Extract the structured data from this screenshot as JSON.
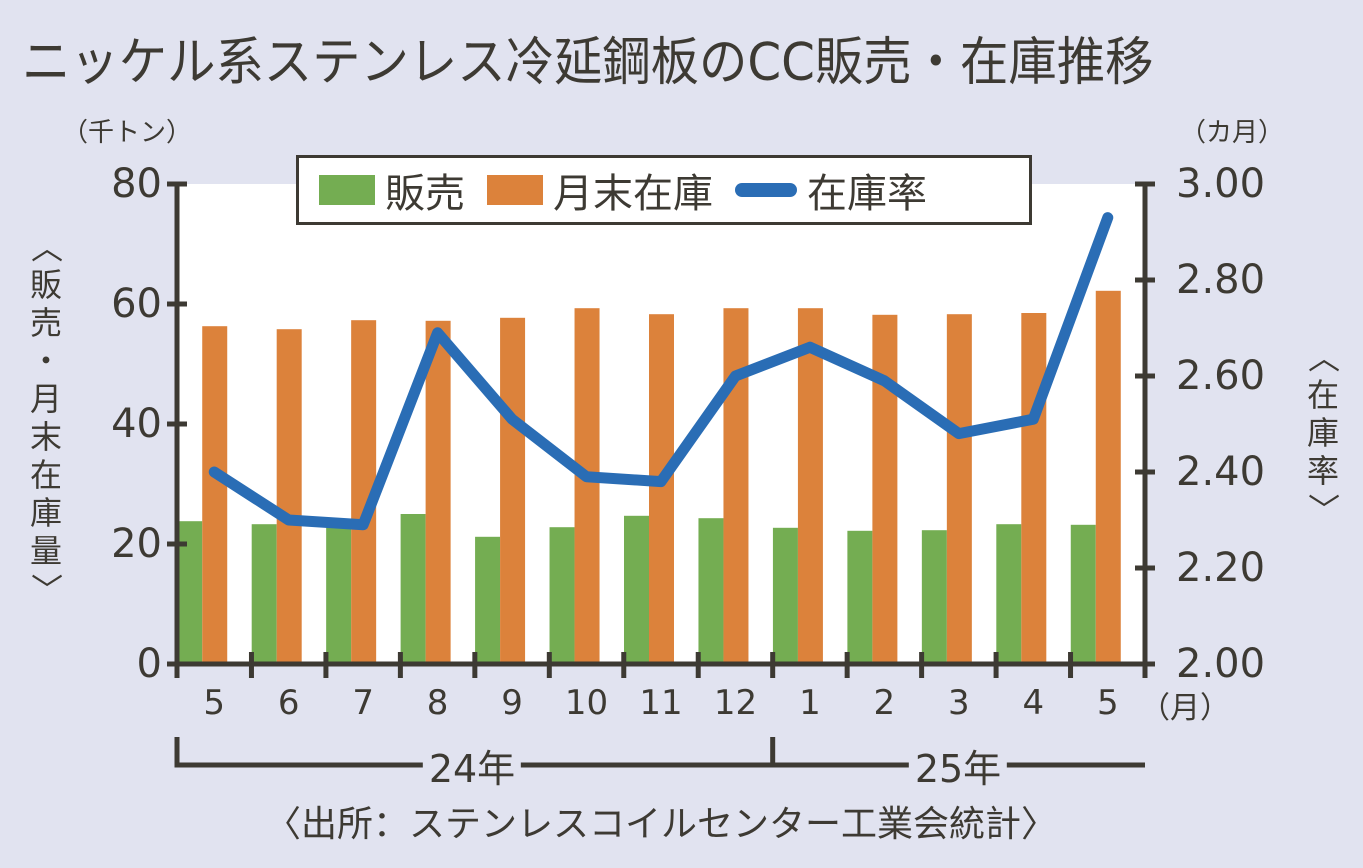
{
  "title": "ニッケル系ステンレス冷延鋼板のCC販売・在庫推移",
  "unit_left": "（千トン）",
  "unit_right": "（カ月）",
  "ylabel_left": [
    "〈",
    "販",
    "売",
    "・",
    "月",
    "末",
    "在",
    "庫",
    "量",
    "〉"
  ],
  "ylabel_right": [
    "〈",
    "在",
    "庫",
    "率",
    "〉"
  ],
  "legend": {
    "sales": "販売",
    "inventory": "月末在庫",
    "ratio": "在庫率"
  },
  "x_unit": "（月）",
  "years": {
    "y24": "24年",
    "y25": "25年"
  },
  "source": "〈出所：ステンレスコイルセンター工業会統計〉",
  "colors": {
    "sales": "#74ad52",
    "inventory": "#dc823b",
    "ratio": "#2a6db5",
    "axis": "#3d3a33",
    "background": "#e1e3f0",
    "plot": "#ffffff"
  },
  "chart_data": {
    "type": "bar",
    "title": "ニッケル系ステンレス冷延鋼板のCC販売・在庫推移",
    "categories": [
      "5",
      "6",
      "7",
      "8",
      "9",
      "10",
      "11",
      "12",
      "1",
      "2",
      "3",
      "4",
      "5"
    ],
    "category_groups": [
      {
        "label": "24年",
        "range": [
          "5",
          "12"
        ]
      },
      {
        "label": "25年",
        "range": [
          "1",
          "5"
        ]
      }
    ],
    "xlabel": "（月）",
    "ylabel": "販売・月末在庫量（千トン）",
    "ylabel_right": "在庫率（カ月）",
    "ylim": [
      0,
      80
    ],
    "yticks": [
      0,
      20,
      40,
      60,
      80
    ],
    "ylim_right": [
      2.0,
      3.0
    ],
    "yticks_right": [
      "2.00",
      "2.20",
      "2.40",
      "2.60",
      "2.80",
      "3.00"
    ],
    "legend_position": "top",
    "grid": false,
    "series": [
      {
        "name": "販売",
        "type": "bar",
        "axis": "left",
        "values": [
          23.8,
          23.3,
          22.8,
          25.0,
          21.2,
          22.8,
          24.7,
          24.3,
          22.7,
          22.2,
          22.3,
          23.3,
          23.2
        ]
      },
      {
        "name": "月末在庫",
        "type": "bar",
        "axis": "left",
        "values": [
          56.3,
          55.8,
          57.3,
          57.2,
          57.7,
          59.3,
          58.3,
          59.3,
          59.3,
          58.2,
          58.3,
          58.5,
          62.2
        ]
      },
      {
        "name": "在庫率",
        "type": "line",
        "axis": "right",
        "values": [
          2.4,
          2.3,
          2.29,
          2.69,
          2.51,
          2.39,
          2.38,
          2.6,
          2.66,
          2.59,
          2.48,
          2.51,
          2.93
        ]
      }
    ],
    "source": "ステンレスコイルセンター工業会統計"
  }
}
